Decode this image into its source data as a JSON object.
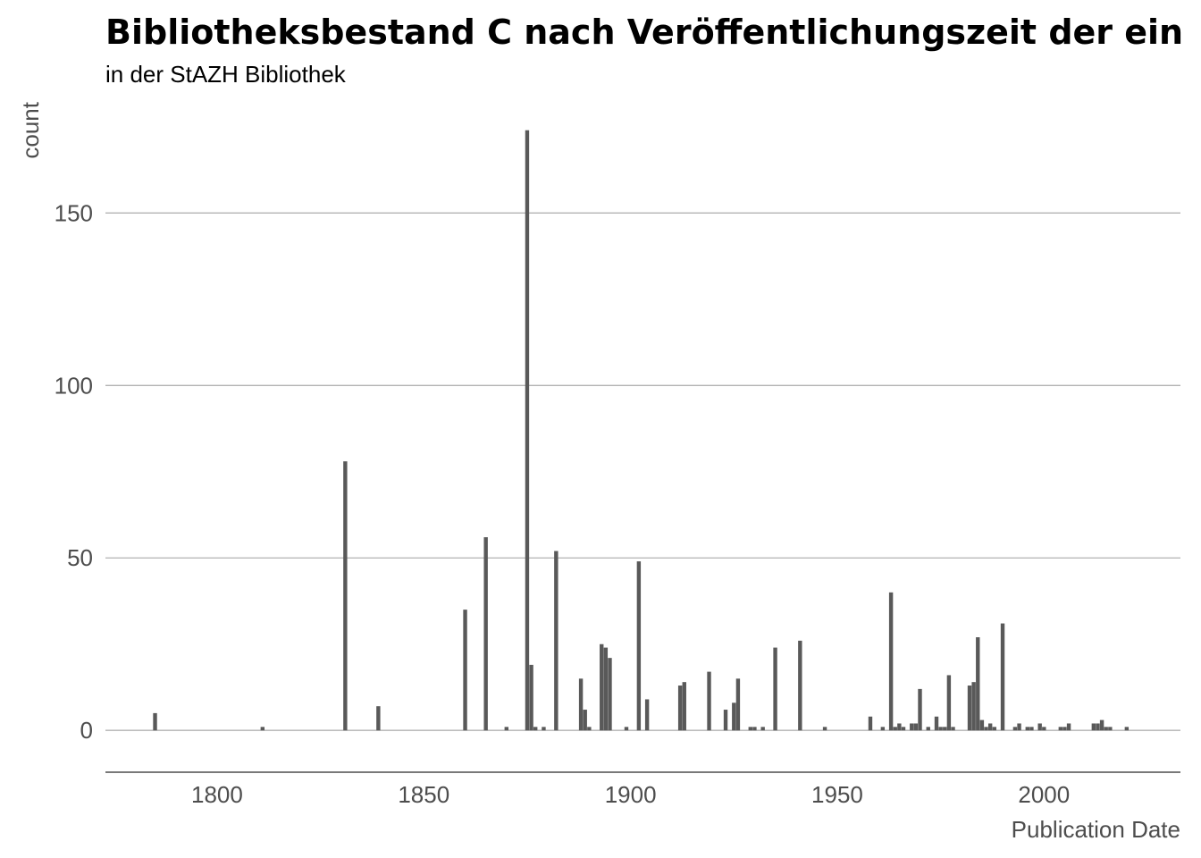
{
  "chart_data": {
    "type": "bar",
    "title": "Bibliotheksbestand C nach Veröffentlichungszeit der ein",
    "subtitle": "in der StAZH Bibliothek",
    "xlabel": "Publication Date",
    "ylabel": "count",
    "xlim": [
      1773,
      2033
    ],
    "ylim": [
      -8.5,
      176
    ],
    "x_ticks": [
      1800,
      1850,
      1900,
      1950,
      2000
    ],
    "y_ticks": [
      0,
      50,
      100,
      150
    ],
    "grid": "horizontal",
    "colors": {
      "bar": "#595959",
      "grid": "#b3b3b3",
      "axis": "#4d4d4d",
      "text": "#4d4d4d"
    },
    "x": [
      1785,
      1811,
      1831,
      1839,
      1860,
      1865,
      1870,
      1875,
      1876,
      1877,
      1879,
      1882,
      1888,
      1889,
      1890,
      1893,
      1894,
      1895,
      1899,
      1902,
      1904,
      1912,
      1913,
      1919,
      1923,
      1925,
      1926,
      1929,
      1930,
      1932,
      1935,
      1941,
      1947,
      1958,
      1961,
      1963,
      1964,
      1965,
      1966,
      1968,
      1969,
      1970,
      1972,
      1974,
      1975,
      1976,
      1977,
      1978,
      1982,
      1983,
      1984,
      1985,
      1986,
      1987,
      1988,
      1990,
      1993,
      1994,
      1996,
      1997,
      1999,
      2000,
      2004,
      2005,
      2006,
      2012,
      2013,
      2014,
      2015,
      2016,
      2020
    ],
    "values": [
      5,
      1,
      78,
      7,
      35,
      56,
      1,
      174,
      19,
      1,
      1,
      52,
      15,
      6,
      1,
      25,
      24,
      21,
      1,
      49,
      9,
      13,
      14,
      17,
      6,
      8,
      15,
      1,
      1,
      1,
      24,
      26,
      1,
      4,
      1,
      40,
      1,
      2,
      1,
      2,
      2,
      12,
      1,
      4,
      1,
      1,
      16,
      1,
      13,
      14,
      27,
      3,
      1,
      2,
      1,
      31,
      1,
      2,
      1,
      1,
      2,
      1,
      1,
      1,
      2,
      2,
      2,
      3,
      1,
      1,
      1
    ]
  }
}
